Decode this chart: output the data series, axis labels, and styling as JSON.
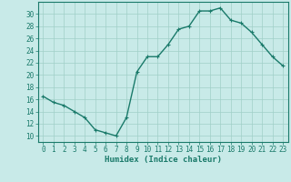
{
  "x": [
    0,
    1,
    2,
    3,
    4,
    5,
    6,
    7,
    8,
    9,
    10,
    11,
    12,
    13,
    14,
    15,
    16,
    17,
    18,
    19,
    20,
    21,
    22,
    23
  ],
  "y": [
    16.5,
    15.5,
    15.0,
    14.0,
    13.0,
    11.0,
    10.5,
    10.0,
    13.0,
    20.5,
    23.0,
    23.0,
    25.0,
    27.5,
    28.0,
    30.5,
    30.5,
    31.0,
    29.0,
    28.5,
    27.0,
    25.0,
    23.0,
    21.5
  ],
  "line_color": "#1a7a6a",
  "marker": "+",
  "bg_color": "#c8eae8",
  "grid_color": "#a0cfc8",
  "xlabel": "Humidex (Indice chaleur)",
  "xlim": [
    -0.5,
    23.5
  ],
  "ylim": [
    9,
    32
  ],
  "yticks": [
    10,
    12,
    14,
    16,
    18,
    20,
    22,
    24,
    26,
    28,
    30
  ],
  "xticks": [
    0,
    1,
    2,
    3,
    4,
    5,
    6,
    7,
    8,
    9,
    10,
    11,
    12,
    13,
    14,
    15,
    16,
    17,
    18,
    19,
    20,
    21,
    22,
    23
  ],
  "tick_fontsize": 5.5,
  "xlabel_fontsize": 6.5,
  "linewidth": 1.0,
  "markersize": 3
}
